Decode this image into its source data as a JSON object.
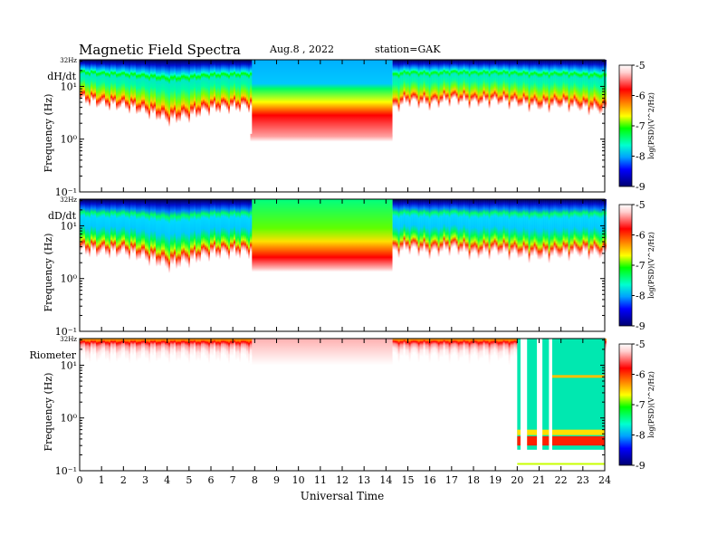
{
  "header": {
    "title": "Magnetic  Field  Spectra",
    "date": "Aug.8  , 2022",
    "station": "station=GAK"
  },
  "chart_data": {
    "type": "heatmap",
    "xlabel": "Universal Time",
    "xlim": [
      0,
      24
    ],
    "x_ticks": [
      "0",
      "1",
      "2",
      "3",
      "4",
      "5",
      "6",
      "7",
      "8",
      "9",
      "10",
      "11",
      "12",
      "13",
      "14",
      "15",
      "16",
      "17",
      "18",
      "19",
      "20",
      "21",
      "22",
      "23",
      "24"
    ],
    "y_scale": "log",
    "ylim_hz": [
      0.1,
      32
    ],
    "y_tick_labels": [
      "32Hz",
      "10¹",
      "10⁰",
      "10⁻¹"
    ],
    "colorbar": {
      "label": "log(PSD)(V^2/Hz)",
      "range": [
        -9,
        -5
      ],
      "ticks": [
        "-5",
        "-6",
        "-7",
        "-8",
        "-9"
      ],
      "colormap": [
        "#000070",
        "#0000ff",
        "#00aaff",
        "#00ffe0",
        "#00ff00",
        "#c8ff00",
        "#ffff00",
        "#ff8c00",
        "#ff0000",
        "#ffffff"
      ]
    },
    "data_gap_hours": [
      7.8,
      14.3
    ],
    "panels": [
      {
        "name": "dH/dt",
        "ylabel": "Frequency  (Hz)",
        "gap_fill": "sky-blue band above 10¹ Hz, green/yellow to red descending to ~1.5 Hz, white below",
        "noise_floor_hz_by_hour": [
          [
            0,
            2.0
          ],
          [
            1,
            1.4
          ],
          [
            2,
            1.2
          ],
          [
            3,
            0.8
          ],
          [
            4,
            0.45
          ],
          [
            5,
            0.6
          ],
          [
            6,
            1.0
          ],
          [
            7.8,
            1.2
          ],
          [
            14.3,
            1.0
          ],
          [
            15,
            1.8
          ],
          [
            16,
            1.4
          ],
          [
            17,
            2.0
          ],
          [
            18,
            1.6
          ],
          [
            19,
            1.8
          ],
          [
            20,
            1.5
          ],
          [
            21,
            1.2
          ],
          [
            22,
            1.4
          ],
          [
            23,
            1.1
          ],
          [
            24,
            0.9
          ]
        ]
      },
      {
        "name": "dD/dt",
        "ylabel": "Frequency  (Hz)",
        "gap_fill": "green band at top grading through yellow to red near ~3 Hz, white below",
        "noise_floor_hz_by_hour": [
          [
            0,
            1.0
          ],
          [
            1,
            0.9
          ],
          [
            2,
            0.9
          ],
          [
            3,
            0.6
          ],
          [
            4,
            0.35
          ],
          [
            5,
            0.5
          ],
          [
            6,
            0.8
          ],
          [
            7.8,
            0.9
          ],
          [
            14.3,
            0.9
          ],
          [
            15,
            1.2
          ],
          [
            16,
            0.9
          ],
          [
            17,
            1.2
          ],
          [
            18,
            0.8
          ],
          [
            19,
            1.0
          ],
          [
            20,
            0.8
          ],
          [
            21,
            0.7
          ],
          [
            22,
            0.8
          ],
          [
            23,
            0.9
          ],
          [
            24,
            0.8
          ]
        ]
      },
      {
        "name": "Riometer",
        "ylabel": "Frequency  (Hz)",
        "gap_fill": "faint pink near the top, white below",
        "noise_floor_hz_by_hour": [
          [
            0,
            10.0
          ],
          [
            7.8,
            10.0
          ],
          [
            14.3,
            11.0
          ],
          [
            20,
            10.0
          ]
        ],
        "note": "after ~20 UT: green/cyan broadband with red band near 0.3 Hz and interruptions near 20.2 and 21.2 UT"
      }
    ]
  }
}
